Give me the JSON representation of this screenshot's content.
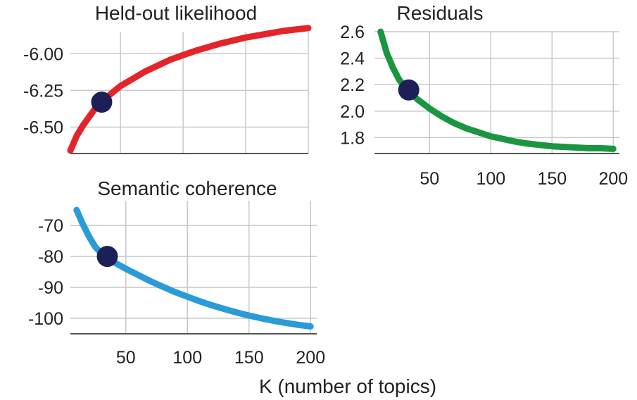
{
  "xlabel": "K (number of topics)",
  "chart_data": [
    {
      "id": "heldout",
      "type": "line",
      "title": "Held-out likelihood",
      "xlabel": "",
      "ylabel": "",
      "xlim": [
        10,
        200
      ],
      "ylim": [
        -6.68,
        -5.85
      ],
      "xticks": [
        50,
        100,
        150,
        200
      ],
      "yticks": [
        -6.5,
        -6.25,
        -6.0
      ],
      "ytick_labels": [
        "-6.50",
        "-6.25",
        "-6.00"
      ],
      "show_xtick_labels": false,
      "color": "#e3242b",
      "x": [
        10,
        15,
        20,
        25,
        30,
        35,
        40,
        50,
        60,
        70,
        80,
        90,
        100,
        110,
        120,
        130,
        140,
        150,
        160,
        170,
        180,
        190,
        200
      ],
      "y": [
        -6.66,
        -6.56,
        -6.49,
        -6.43,
        -6.37,
        -6.33,
        -6.29,
        -6.22,
        -6.17,
        -6.12,
        -6.08,
        -6.04,
        -6.01,
        -5.98,
        -5.955,
        -5.93,
        -5.91,
        -5.89,
        -5.875,
        -5.86,
        -5.845,
        -5.835,
        -5.825
      ],
      "marker": {
        "x": 35,
        "y": -6.33,
        "color": "#1d2057"
      }
    },
    {
      "id": "residuals",
      "type": "line",
      "title": "Residuals",
      "xlabel": "",
      "ylabel": "",
      "xlim": [
        5,
        205
      ],
      "ylim": [
        1.68,
        2.6
      ],
      "xticks": [
        50,
        100,
        150,
        200
      ],
      "yticks": [
        1.8,
        2.0,
        2.2,
        2.4,
        2.6
      ],
      "ytick_labels": [
        "1.8",
        "2.0",
        "2.2",
        "2.4",
        "2.6"
      ],
      "xtick_labels": [
        "50",
        "100",
        "150",
        "200"
      ],
      "show_xtick_labels": true,
      "color": "#1a9641",
      "x": [
        10,
        15,
        20,
        25,
        30,
        35,
        40,
        50,
        60,
        70,
        80,
        90,
        100,
        110,
        120,
        130,
        140,
        150,
        160,
        170,
        180,
        190,
        200
      ],
      "y": [
        2.6,
        2.44,
        2.33,
        2.24,
        2.18,
        2.13,
        2.09,
        2.02,
        1.96,
        1.91,
        1.87,
        1.84,
        1.81,
        1.79,
        1.77,
        1.755,
        1.745,
        1.735,
        1.73,
        1.725,
        1.72,
        1.72,
        1.715
      ],
      "marker": {
        "x": 33,
        "y": 2.16,
        "color": "#1d2057"
      }
    },
    {
      "id": "coherence",
      "type": "line",
      "title": "Semantic coherence",
      "xlabel": "",
      "ylabel": "",
      "xlim": [
        5,
        205
      ],
      "ylim": [
        -105,
        -62
      ],
      "xticks": [
        50,
        100,
        150,
        200
      ],
      "yticks": [
        -100,
        -90,
        -80,
        -70
      ],
      "ytick_labels": [
        "-100",
        "-90",
        "-80",
        "-70"
      ],
      "xtick_labels": [
        "50",
        "100",
        "150",
        "200"
      ],
      "show_xtick_labels": true,
      "color": "#2b9bd8",
      "x": [
        10,
        15,
        20,
        25,
        30,
        35,
        40,
        50,
        60,
        70,
        80,
        90,
        100,
        110,
        120,
        130,
        140,
        150,
        160,
        170,
        180,
        190,
        200
      ],
      "y": [
        -65,
        -69.5,
        -73.5,
        -76.8,
        -79,
        -80.5,
        -81.8,
        -84,
        -86,
        -88,
        -89.8,
        -91.5,
        -93,
        -94.5,
        -95.8,
        -97,
        -98.1,
        -99.1,
        -100,
        -100.8,
        -101.5,
        -102.1,
        -102.6
      ],
      "marker": {
        "x": 35,
        "y": -80,
        "color": "#1d2057"
      }
    }
  ]
}
